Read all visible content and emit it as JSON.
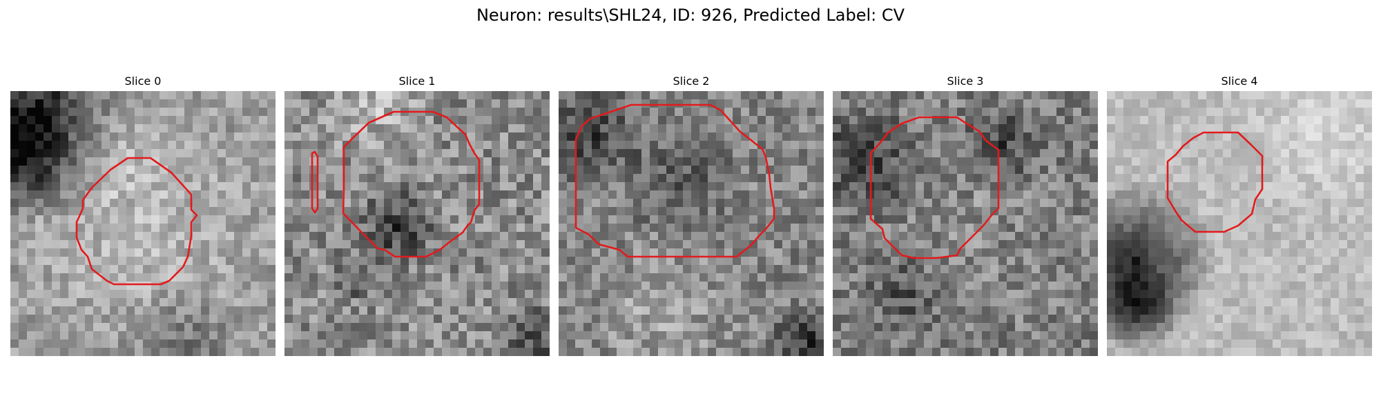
{
  "figure": {
    "title": "Neuron: results\\SHL24, ID: 926, Predicted Label: CV",
    "contour_color": "#e31a1c",
    "colormap": "gray"
  },
  "panels": [
    {
      "title": "Slice 0"
    },
    {
      "title": "Slice 1"
    },
    {
      "title": "Slice 2"
    },
    {
      "title": "Slice 3"
    },
    {
      "title": "Slice 4"
    }
  ]
}
